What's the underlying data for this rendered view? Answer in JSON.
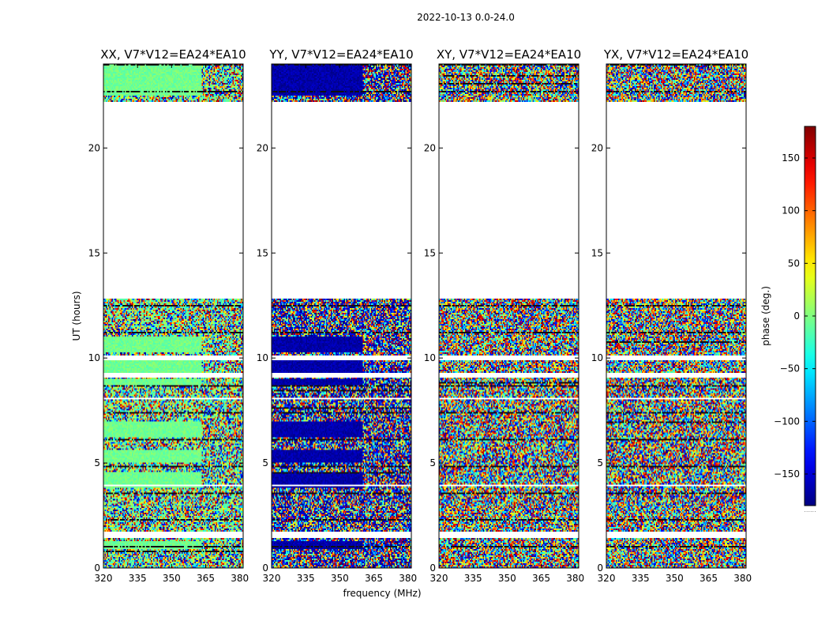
{
  "figure": {
    "suptitle": "2022-10-13 0.0-24.0",
    "xlabel": "frequency (MHz)",
    "ylabel": "UT (hours)"
  },
  "chart_data": {
    "type": "heatmap",
    "title": "2022-10-13 0.0-24.0",
    "xlabel": "frequency (MHz)",
    "ylabel": "UT (hours)",
    "xlim": [
      320,
      381.5
    ],
    "ylim": [
      0,
      24
    ],
    "xticks": [
      320,
      335,
      350,
      365,
      380
    ],
    "yticks": [
      0,
      5,
      10,
      15,
      20
    ],
    "panels": [
      {
        "title": "XX, V7*V12=EA24*EA10",
        "pol": "XX",
        "dominant_phase": -5,
        "coherent_below_mhz": 363
      },
      {
        "title": "YY, V7*V12=EA24*EA10",
        "pol": "YY",
        "dominant_phase": -165,
        "coherent_below_mhz": 360
      },
      {
        "title": "XY, V7*V12=EA24*EA10",
        "pol": "XY",
        "dominant_phase": null,
        "coherent_below_mhz": null
      },
      {
        "title": "YX, V7*V12=EA24*EA10",
        "pol": "YX",
        "dominant_phase": null,
        "coherent_below_mhz": null
      }
    ],
    "empty_ut_range": [
      12.85,
      22.2
    ],
    "blank_ut_bands": [
      [
        1.4,
        1.7
      ],
      [
        9.1,
        9.3
      ],
      [
        9.9,
        10.1
      ],
      [
        8.0,
        8.1
      ],
      [
        3.9,
        4.0
      ]
    ],
    "colorbar": {
      "label": "phase (deg.)",
      "vmin": -180,
      "vmax": 180,
      "ticks": [
        -150,
        -100,
        -50,
        0,
        50,
        100,
        150
      ],
      "tick_labels": [
        "−150",
        "−100",
        "−50",
        "0",
        "50",
        "100",
        "150"
      ],
      "colormap": "jet",
      "under_label": "......"
    }
  }
}
